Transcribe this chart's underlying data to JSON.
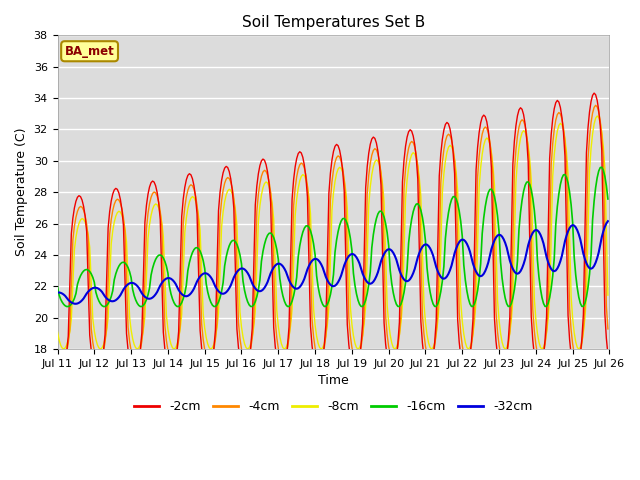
{
  "title": "Soil Temperatures Set B",
  "xlabel": "Time",
  "ylabel": "Soil Temperature (C)",
  "ylim": [
    18,
    38
  ],
  "yticks": [
    18,
    20,
    22,
    24,
    26,
    28,
    30,
    32,
    34,
    36,
    38
  ],
  "annotation": "BA_met",
  "bg_color": "#dcdcdc",
  "line_colors": {
    "-2cm": "#ee0000",
    "-4cm": "#ff8800",
    "-8cm": "#eeee00",
    "-16cm": "#00cc00",
    "-32cm": "#0000dd"
  },
  "x_tick_labels": [
    "Jul 11",
    "Jul 12",
    "Jul 13",
    "Jul 14",
    "Jul 15",
    "Jul 16",
    "Jul 17",
    "Jul 18",
    "Jul 19",
    "Jul 20",
    "Jul 21",
    "Jul 22",
    "Jul 23",
    "Jul 24",
    "Jul 25",
    "Jul 26"
  ]
}
